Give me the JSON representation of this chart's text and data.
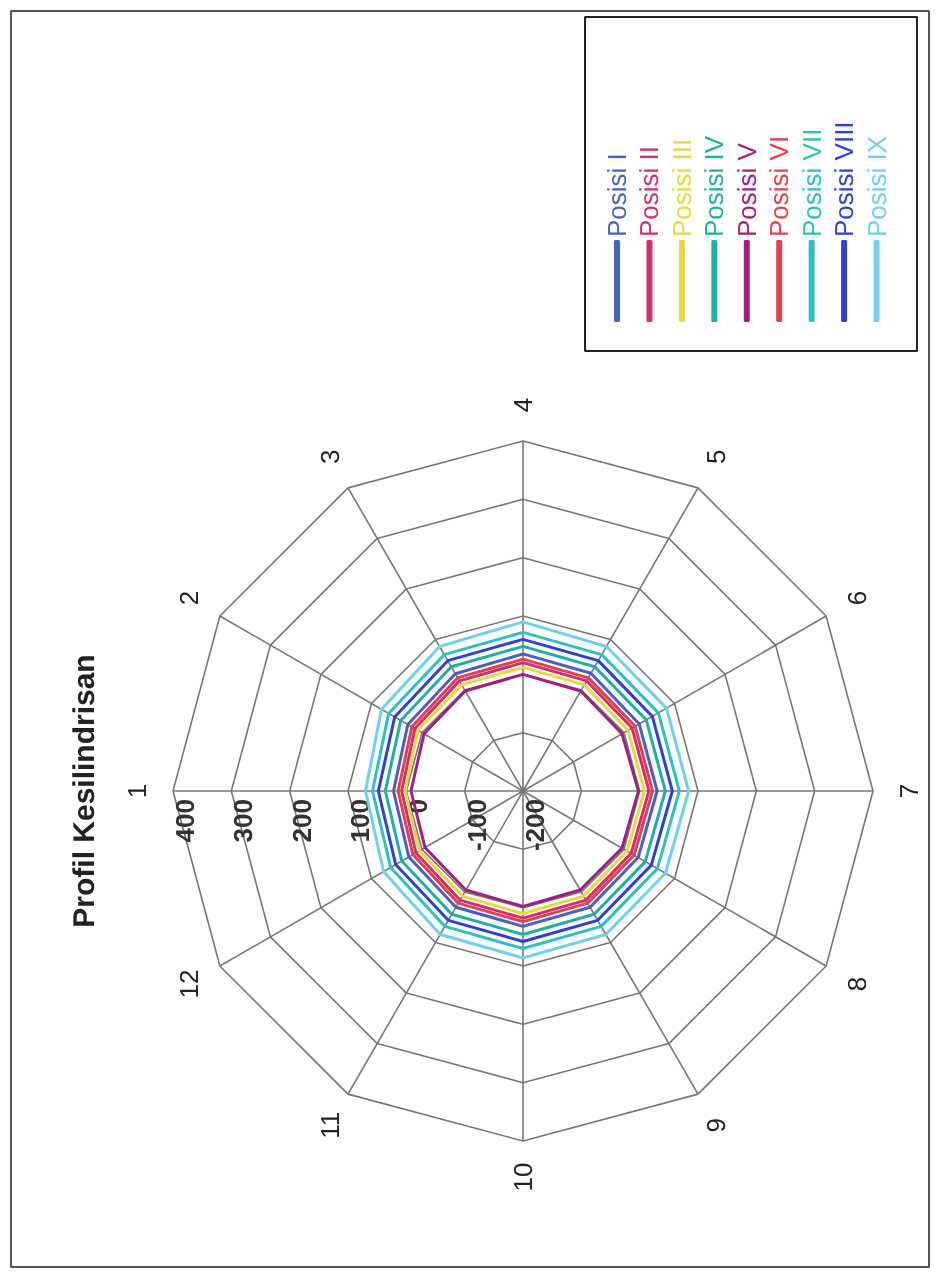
{
  "chart_data": {
    "type": "radar",
    "title": "Profil Kesilindrisan",
    "categories": [
      "1",
      "2",
      "3",
      "4",
      "5",
      "6",
      "7",
      "8",
      "9",
      "10",
      "11",
      "12"
    ],
    "ylim": [
      -200,
      400
    ],
    "yticks": [
      -200,
      -100,
      0,
      100,
      200,
      300,
      400
    ],
    "grid": true,
    "legend": "top right",
    "series": [
      {
        "name": "Posisi I",
        "color": "#4a5fc1",
        "values": [
          22,
          28,
          32,
          35,
          33,
          30,
          30,
          28,
          30,
          32,
          30,
          26
        ]
      },
      {
        "name": "Posisi II",
        "color": "#d0306e",
        "values": [
          8,
          14,
          18,
          20,
          18,
          16,
          16,
          14,
          16,
          18,
          16,
          12
        ]
      },
      {
        "name": "Posisi III",
        "color": "#e8d840",
        "values": [
          2,
          8,
          10,
          12,
          10,
          8,
          8,
          6,
          8,
          10,
          8,
          5
        ]
      },
      {
        "name": "Posisi IV",
        "color": "#20b0a0",
        "values": [
          36,
          42,
          46,
          48,
          46,
          44,
          44,
          42,
          44,
          46,
          44,
          40
        ]
      },
      {
        "name": "Posisi V",
        "color": "#a02080",
        "values": [
          -8,
          -4,
          -2,
          0,
          -2,
          -4,
          -2,
          -4,
          -4,
          -2,
          -4,
          -6
        ]
      },
      {
        "name": "Posisi VI",
        "color": "#e04050",
        "values": [
          14,
          20,
          24,
          26,
          24,
          22,
          22,
          20,
          22,
          24,
          22,
          18
        ]
      },
      {
        "name": "Posisi VII",
        "color": "#30c0c0",
        "values": [
          58,
          66,
          70,
          72,
          70,
          68,
          68,
          66,
          68,
          70,
          68,
          62
        ]
      },
      {
        "name": "Posisi VIII",
        "color": "#3040d0",
        "values": [
          48,
          54,
          58,
          60,
          58,
          56,
          56,
          54,
          56,
          58,
          56,
          52
        ]
      },
      {
        "name": "Posisi IX",
        "color": "#70d0f0",
        "values": [
          70,
          80,
          86,
          90,
          86,
          84,
          84,
          82,
          84,
          86,
          84,
          76
        ]
      }
    ]
  }
}
